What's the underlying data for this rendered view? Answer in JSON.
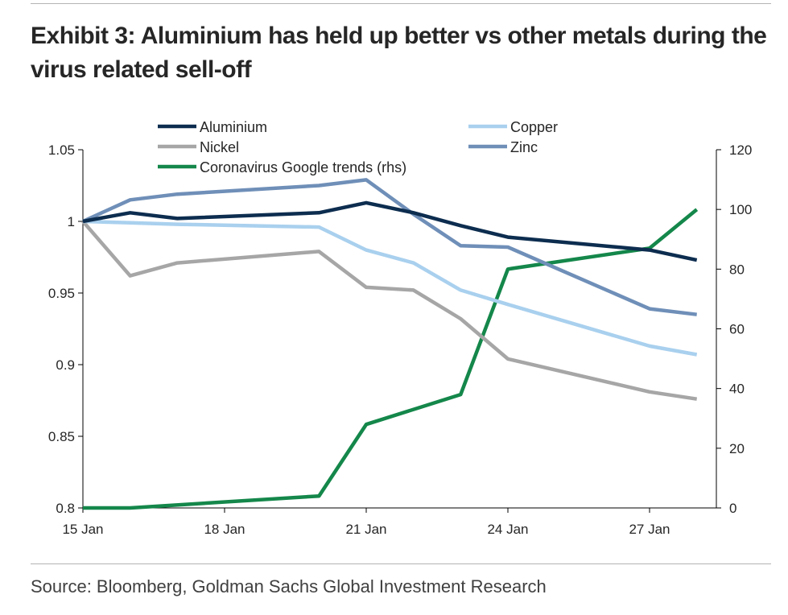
{
  "header": {
    "title": "Exhibit 3: Aluminium has held up better vs other metals during the virus related sell-off"
  },
  "footer": {
    "source": "Source: Bloomberg, Goldman Sachs Global Investment Research"
  },
  "colors": {
    "aluminium": "#0d2d4f",
    "copper": "#a9d0ee",
    "nickel": "#a6a6a6",
    "zinc": "#6f8fb8",
    "coronavirus": "#14874a",
    "axis": "#000000",
    "text": "#262626"
  },
  "chart_data": {
    "type": "line",
    "title": "Exhibit 3: Aluminium has held up better vs other metals during the virus related sell-off",
    "x_unit": "days since 15 Jan",
    "x_range": [
      0,
      13
    ],
    "x_ticks": [
      {
        "x": 0,
        "label": "15 Jan"
      },
      {
        "x": 3,
        "label": "18 Jan"
      },
      {
        "x": 6,
        "label": "21 Jan"
      },
      {
        "x": 9,
        "label": "24 Jan"
      },
      {
        "x": 12,
        "label": "27 Jan"
      }
    ],
    "y_left": {
      "min": 0.8,
      "max": 1.05,
      "ticks": [
        0.8,
        0.85,
        0.9,
        0.95,
        1,
        1.05
      ],
      "tick_labels": [
        "0.8",
        "0.85",
        "0.9",
        "0.95",
        "1",
        "1.05"
      ]
    },
    "y_right": {
      "min": 0,
      "max": 120,
      "ticks": [
        0,
        20,
        40,
        60,
        80,
        100,
        120
      ],
      "tick_labels": [
        "0",
        "20",
        "40",
        "60",
        "80",
        "100",
        "120"
      ]
    },
    "legend_position": "top",
    "series": [
      {
        "key": "aluminium",
        "name": "Aluminium",
        "axis": "left",
        "points": [
          [
            0,
            1.0
          ],
          [
            1,
            1.006
          ],
          [
            2,
            1.002
          ],
          [
            5,
            1.006
          ],
          [
            6,
            1.013
          ],
          [
            7,
            1.006
          ],
          [
            8,
            0.997
          ],
          [
            9,
            0.989
          ],
          [
            12,
            0.98
          ],
          [
            13,
            0.973
          ]
        ]
      },
      {
        "key": "copper",
        "name": "Copper",
        "axis": "left",
        "points": [
          [
            0,
            1.0
          ],
          [
            1,
            0.999
          ],
          [
            2,
            0.998
          ],
          [
            5,
            0.996
          ],
          [
            6,
            0.98
          ],
          [
            7,
            0.971
          ],
          [
            8,
            0.952
          ],
          [
            9,
            0.942
          ],
          [
            12,
            0.913
          ],
          [
            13,
            0.907
          ]
        ]
      },
      {
        "key": "nickel",
        "name": "Nickel",
        "axis": "left",
        "points": [
          [
            0,
            1.0
          ],
          [
            1,
            0.962
          ],
          [
            2,
            0.971
          ],
          [
            5,
            0.979
          ],
          [
            6,
            0.954
          ],
          [
            7,
            0.952
          ],
          [
            8,
            0.932
          ],
          [
            9,
            0.904
          ],
          [
            12,
            0.881
          ],
          [
            13,
            0.876
          ]
        ]
      },
      {
        "key": "zinc",
        "name": "Zinc",
        "axis": "left",
        "points": [
          [
            0,
            1.0
          ],
          [
            1,
            1.015
          ],
          [
            2,
            1.019
          ],
          [
            5,
            1.025
          ],
          [
            6,
            1.029
          ],
          [
            7,
            1.005
          ],
          [
            8,
            0.983
          ],
          [
            9,
            0.982
          ],
          [
            12,
            0.939
          ],
          [
            13,
            0.935
          ]
        ]
      },
      {
        "key": "coronavirus",
        "name": "Coronavirus Google trends (rhs)",
        "axis": "right",
        "points": [
          [
            0,
            0
          ],
          [
            1,
            0
          ],
          [
            5,
            4
          ],
          [
            6,
            28
          ],
          [
            8,
            38
          ],
          [
            9,
            80
          ],
          [
            12,
            87
          ],
          [
            13,
            100
          ]
        ]
      }
    ],
    "legend": [
      {
        "key": "aluminium",
        "label": "Aluminium"
      },
      {
        "key": "copper",
        "label": "Copper"
      },
      {
        "key": "nickel",
        "label": "Nickel"
      },
      {
        "key": "zinc",
        "label": "Zinc"
      },
      {
        "key": "coronavirus",
        "label": "Coronavirus Google trends (rhs)"
      }
    ]
  }
}
